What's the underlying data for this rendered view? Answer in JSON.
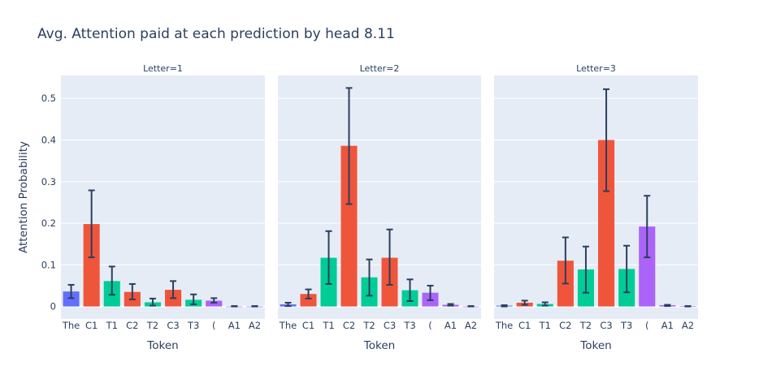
{
  "title": "Avg. Attention paid at each prediction by head 8.11",
  "ylabel": "Attention Probability",
  "xlabel": "Token",
  "colors": {
    "The": "#636efa",
    "C": "#ef553b",
    "T": "#00cc96",
    "paren": "#ab63fa",
    "A": "#ab63fa",
    "error": "#2a3f5f",
    "plot_bg": "#e5ecf6",
    "grid": "#ffffff"
  },
  "yticks": [
    {
      "value": 0,
      "label": "0"
    },
    {
      "value": 0.1,
      "label": "0.1"
    },
    {
      "value": 0.2,
      "label": "0.2"
    },
    {
      "value": 0.3,
      "label": "0.3"
    },
    {
      "value": 0.4,
      "label": "0.4"
    },
    {
      "value": 0.5,
      "label": "0.5"
    }
  ],
  "chart_data": [
    {
      "type": "bar",
      "facet_label": "Letter=1",
      "categories": [
        "The",
        "C1",
        "T1",
        "C2",
        "T2",
        "C3",
        "T3",
        "(",
        "A1",
        "A2"
      ],
      "groups": [
        "The",
        "C",
        "T",
        "C",
        "T",
        "C",
        "T",
        "paren",
        "A",
        "A"
      ],
      "values": [
        0.036,
        0.198,
        0.061,
        0.035,
        0.01,
        0.04,
        0.016,
        0.014,
        0.0,
        0.0
      ],
      "err_low": [
        0.02,
        0.118,
        0.028,
        0.017,
        0.002,
        0.02,
        0.005,
        0.009,
        0.0,
        0.0
      ],
      "err_high": [
        0.052,
        0.279,
        0.096,
        0.054,
        0.019,
        0.061,
        0.029,
        0.02,
        0.001,
        0.001
      ],
      "ylim": [
        -0.03,
        0.555
      ]
    },
    {
      "type": "bar",
      "facet_label": "Letter=2",
      "categories": [
        "The",
        "C1",
        "T1",
        "C2",
        "T2",
        "C3",
        "T3",
        "(",
        "A1",
        "A2"
      ],
      "groups": [
        "The",
        "C",
        "T",
        "C",
        "T",
        "C",
        "T",
        "paren",
        "A",
        "A"
      ],
      "values": [
        0.005,
        0.03,
        0.117,
        0.386,
        0.07,
        0.117,
        0.039,
        0.033,
        0.004,
        0.0
      ],
      "err_low": [
        0.001,
        0.019,
        0.054,
        0.246,
        0.026,
        0.052,
        0.013,
        0.015,
        0.002,
        0.0
      ],
      "err_high": [
        0.009,
        0.041,
        0.181,
        0.525,
        0.113,
        0.185,
        0.065,
        0.05,
        0.006,
        0.001
      ],
      "ylim": [
        -0.03,
        0.555
      ]
    },
    {
      "type": "bar",
      "facet_label": "Letter=3",
      "categories": [
        "The",
        "C1",
        "T1",
        "C2",
        "T2",
        "C3",
        "T3",
        "(",
        "A1",
        "A2"
      ],
      "groups": [
        "The",
        "C",
        "T",
        "C",
        "T",
        "C",
        "T",
        "paren",
        "A",
        "A"
      ],
      "values": [
        0.002,
        0.009,
        0.006,
        0.11,
        0.089,
        0.4,
        0.09,
        0.192,
        0.003,
        0.001
      ],
      "err_low": [
        0.0,
        0.004,
        0.002,
        0.055,
        0.033,
        0.277,
        0.034,
        0.118,
        0.001,
        0.0
      ],
      "err_high": [
        0.003,
        0.014,
        0.01,
        0.166,
        0.144,
        0.522,
        0.146,
        0.266,
        0.004,
        0.001
      ],
      "ylim": [
        -0.03,
        0.555
      ]
    }
  ]
}
